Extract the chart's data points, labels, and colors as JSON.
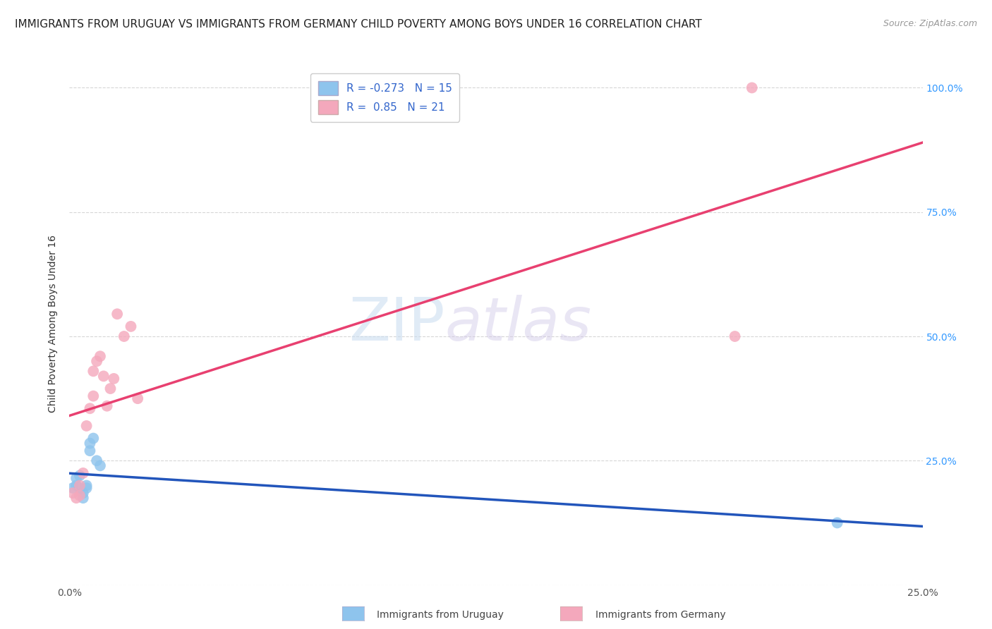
{
  "title": "IMMIGRANTS FROM URUGUAY VS IMMIGRANTS FROM GERMANY CHILD POVERTY AMONG BOYS UNDER 16 CORRELATION CHART",
  "source": "Source: ZipAtlas.com",
  "ylabel": "Child Poverty Among Boys Under 16",
  "xlim": [
    0.0,
    0.25
  ],
  "ylim": [
    0.0,
    1.05
  ],
  "x_ticks": [
    0.0,
    0.05,
    0.1,
    0.15,
    0.2,
    0.25
  ],
  "x_tick_labels": [
    "0.0%",
    "",
    "",
    "",
    "",
    "25.0%"
  ],
  "y_ticks": [
    0.0,
    0.25,
    0.5,
    0.75,
    1.0
  ],
  "y_tick_labels": [
    "",
    "25.0%",
    "50.0%",
    "75.0%",
    "100.0%"
  ],
  "watermark_zip": "ZIP",
  "watermark_atlas": "atlas",
  "uruguay_color": "#8EC4ED",
  "germany_color": "#F4A8BC",
  "uruguay_line_color": "#2255BB",
  "germany_line_color": "#E84070",
  "uruguay_R": -0.273,
  "uruguay_N": 15,
  "germany_R": 0.85,
  "germany_N": 21,
  "uruguay_x": [
    0.001,
    0.002,
    0.002,
    0.003,
    0.003,
    0.004,
    0.004,
    0.005,
    0.005,
    0.006,
    0.006,
    0.007,
    0.008,
    0.009,
    0.225
  ],
  "uruguay_y": [
    0.195,
    0.215,
    0.2,
    0.22,
    0.195,
    0.185,
    0.175,
    0.195,
    0.2,
    0.27,
    0.285,
    0.295,
    0.25,
    0.24,
    0.125
  ],
  "germany_x": [
    0.001,
    0.002,
    0.003,
    0.003,
    0.004,
    0.005,
    0.006,
    0.007,
    0.007,
    0.008,
    0.009,
    0.01,
    0.011,
    0.012,
    0.013,
    0.014,
    0.016,
    0.018,
    0.02,
    0.195,
    0.2
  ],
  "germany_y": [
    0.185,
    0.175,
    0.18,
    0.2,
    0.225,
    0.32,
    0.355,
    0.43,
    0.38,
    0.45,
    0.46,
    0.42,
    0.36,
    0.395,
    0.415,
    0.545,
    0.5,
    0.52,
    0.375,
    0.5,
    1.0
  ],
  "background_color": "#FFFFFF",
  "grid_color": "#CCCCCC",
  "title_fontsize": 11,
  "axis_label_fontsize": 10,
  "tick_fontsize": 10,
  "legend_fontsize": 11
}
